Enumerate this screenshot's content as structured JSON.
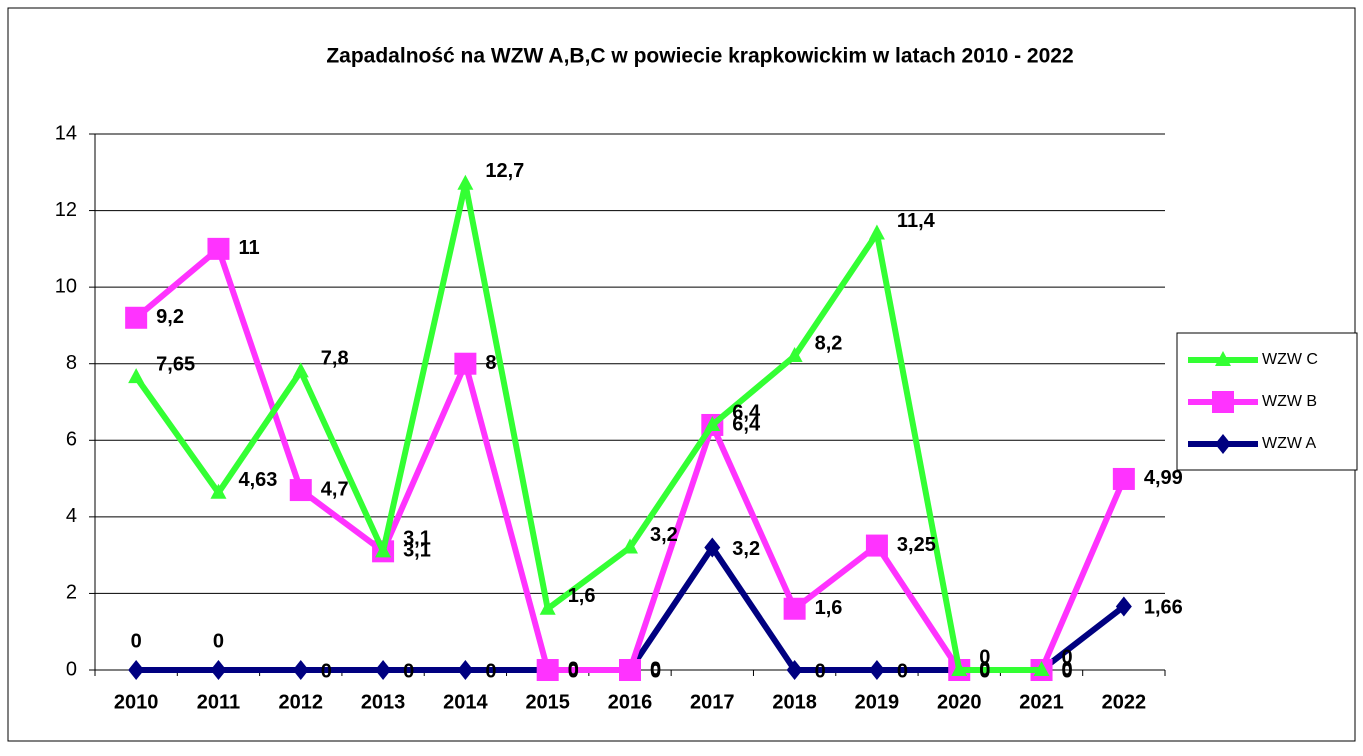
{
  "chart_data": {
    "type": "line",
    "title": "Zapadalność na WZW A,B,C w powiecie krapkowickim w latach 2010 - 2022",
    "categories": [
      "2010",
      "2011",
      "2012",
      "2013",
      "2014",
      "2015",
      "2016",
      "2017",
      "2018",
      "2019",
      "2020",
      "2021",
      "2022"
    ],
    "series": [
      {
        "name": "WZW C",
        "color": "#33ff33",
        "marker": "triangle",
        "values": [
          7.65,
          4.63,
          7.8,
          3.1,
          12.7,
          1.6,
          3.2,
          6.4,
          8.2,
          11.4,
          0,
          0,
          null
        ],
        "value_labels": [
          "7,65",
          "4,63",
          "7,8",
          "3,1",
          "12,7",
          "1,6",
          "3,2",
          "6,4",
          "8,2",
          "11,4",
          "0",
          "0",
          null
        ]
      },
      {
        "name": "WZW B",
        "color": "#ff33ff",
        "marker": "square",
        "values": [
          9.2,
          11,
          4.7,
          3.1,
          8,
          0,
          0,
          6.4,
          1.6,
          3.25,
          0,
          0,
          4.99
        ],
        "value_labels": [
          "9,2",
          "11",
          "4,7",
          "3,1",
          "8",
          "0",
          "0",
          "6,4",
          "1,6",
          "3,25",
          "0",
          "0",
          "4,99"
        ]
      },
      {
        "name": "WZW A",
        "color": "#000080",
        "marker": "diamond",
        "values": [
          0,
          0,
          0,
          0,
          0,
          0,
          0,
          3.2,
          0,
          0,
          0,
          0,
          1.66
        ],
        "value_labels": [
          "0",
          "0",
          "0",
          "0",
          "0",
          "0",
          "0",
          "3,2",
          "0",
          "0",
          "0",
          "0",
          "1,66"
        ]
      }
    ],
    "ylim": [
      0,
      14
    ],
    "yticks": [
      0,
      2,
      4,
      6,
      8,
      10,
      12,
      14
    ],
    "grid": true,
    "legend": "right"
  }
}
